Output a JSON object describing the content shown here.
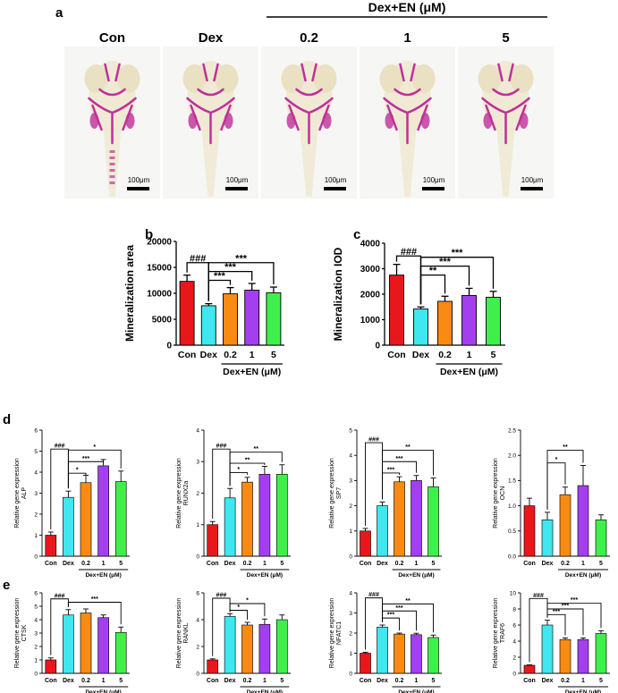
{
  "panel_labels": {
    "a": "a",
    "b": "b",
    "c": "c",
    "d": "d",
    "e": "e"
  },
  "panel_a": {
    "group_header": "Dex+EN (μM)",
    "groups": [
      "Con",
      "Dex",
      "0.2",
      "1",
      "5"
    ],
    "scale_bar_label": "100μm",
    "stain_color": "#c0309a",
    "description_colors": {
      "tissue": "#efe8cf"
    }
  },
  "group_label": "Dex+EN (μM)",
  "colors": [
    "#e8171b",
    "#40e6f0",
    "#f98a12",
    "#a43ff0",
    "#3ff04a"
  ],
  "chart_data": [
    {
      "id": "b",
      "type": "bar",
      "ylabel": "Mineralization area",
      "categories": [
        "Con",
        "Dex",
        "0.2",
        "1",
        "5"
      ],
      "values": [
        12300,
        7600,
        9900,
        10600,
        10100
      ],
      "errors": [
        1200,
        400,
        1200,
        1300,
        1100
      ],
      "ylim": [
        0,
        20000
      ],
      "ticks": [
        0,
        5000,
        10000,
        15000,
        20000
      ],
      "brackets": [
        {
          "from": 0,
          "to": 1,
          "y": 15900,
          "label": "###"
        },
        {
          "from": 1,
          "to": 2,
          "y": 12500,
          "label": "***"
        },
        {
          "from": 1,
          "to": 3,
          "y": 14200,
          "label": "***"
        },
        {
          "from": 1,
          "to": 4,
          "y": 15900,
          "label": "***"
        }
      ]
    },
    {
      "id": "c",
      "type": "bar",
      "ylabel": "Mineralization IOD",
      "categories": [
        "Con",
        "Dex",
        "0.2",
        "1",
        "5"
      ],
      "values": [
        2750,
        1420,
        1720,
        1950,
        1880
      ],
      "errors": [
        420,
        80,
        200,
        280,
        230
      ],
      "ylim": [
        0,
        4000
      ],
      "ticks": [
        0,
        1000,
        2000,
        3000,
        4000
      ],
      "brackets": [
        {
          "from": 0,
          "to": 1,
          "y": 3500,
          "label": "###"
        },
        {
          "from": 1,
          "to": 2,
          "y": 2750,
          "label": "**"
        },
        {
          "from": 1,
          "to": 3,
          "y": 3100,
          "label": "***"
        },
        {
          "from": 1,
          "to": 4,
          "y": 3450,
          "label": "***"
        }
      ]
    },
    {
      "id": "d1",
      "type": "bar",
      "ylabel": "Relative gene expression",
      "ylabel2": "ALP",
      "categories": [
        "Con",
        "Dex",
        "0.2",
        "1",
        "5"
      ],
      "values": [
        1.0,
        2.8,
        3.5,
        4.3,
        3.55
      ],
      "errors": [
        0.15,
        0.3,
        0.35,
        0.3,
        0.5
      ],
      "ylim": [
        0,
        6
      ],
      "ticks": [
        0,
        1,
        2,
        3,
        4,
        5,
        6
      ],
      "brackets": [
        {
          "from": 0,
          "to": 1,
          "y": 5.1,
          "label": "###"
        },
        {
          "from": 1,
          "to": 2,
          "y": 3.95,
          "label": "*"
        },
        {
          "from": 1,
          "to": 3,
          "y": 4.5,
          "label": "***"
        },
        {
          "from": 1,
          "to": 4,
          "y": 5.05,
          "label": "*"
        }
      ]
    },
    {
      "id": "d2",
      "type": "bar",
      "ylabel": "Relative gene expression",
      "ylabel2": "RUNX2a",
      "categories": [
        "Con",
        "Dex",
        "0.2",
        "1",
        "5"
      ],
      "values": [
        1.0,
        1.85,
        2.35,
        2.6,
        2.6
      ],
      "errors": [
        0.1,
        0.3,
        0.15,
        0.25,
        0.3
      ],
      "ylim": [
        0,
        4
      ],
      "ticks": [
        0,
        1,
        2,
        3,
        4
      ],
      "brackets": [
        {
          "from": 0,
          "to": 1,
          "y": 3.4,
          "label": "###"
        },
        {
          "from": 1,
          "to": 2,
          "y": 2.65,
          "label": "*"
        },
        {
          "from": 1,
          "to": 3,
          "y": 2.95,
          "label": "**"
        },
        {
          "from": 1,
          "to": 4,
          "y": 3.3,
          "label": "**"
        }
      ]
    },
    {
      "id": "d3",
      "type": "bar",
      "ylabel": "Relative gene expression",
      "ylabel2": "SP7",
      "categories": [
        "Con",
        "Dex",
        "0.2",
        "1",
        "5"
      ],
      "values": [
        1.0,
        2.0,
        2.95,
        3.0,
        2.75
      ],
      "errors": [
        0.1,
        0.15,
        0.2,
        0.2,
        0.35
      ],
      "ylim": [
        0,
        5
      ],
      "ticks": [
        0,
        1,
        2,
        3,
        4,
        5
      ],
      "brackets": [
        {
          "from": 0,
          "to": 1,
          "y": 4.5,
          "label": "###"
        },
        {
          "from": 1,
          "to": 2,
          "y": 3.3,
          "label": "***"
        },
        {
          "from": 1,
          "to": 3,
          "y": 3.75,
          "label": "***"
        },
        {
          "from": 1,
          "to": 4,
          "y": 4.2,
          "label": "**"
        }
      ]
    },
    {
      "id": "d4",
      "type": "bar",
      "ylabel": "Relative gene expression",
      "ylabel2": "OCN",
      "categories": [
        "Con",
        "Dex",
        "0.2",
        "1",
        "5"
      ],
      "values": [
        1.0,
        0.72,
        1.22,
        1.4,
        0.72
      ],
      "errors": [
        0.15,
        0.15,
        0.15,
        0.4,
        0.1
      ],
      "ylim": [
        0,
        2.5
      ],
      "ticks": [
        0,
        0.5,
        1.0,
        1.5,
        2.0,
        2.5
      ],
      "brackets": [
        {
          "from": 1,
          "to": 2,
          "y": 1.85,
          "label": "*"
        },
        {
          "from": 1,
          "to": 3,
          "y": 2.1,
          "label": "**"
        }
      ]
    },
    {
      "id": "e1",
      "type": "bar",
      "ylabel": "Relative gene expression",
      "ylabel2": "CTSK",
      "categories": [
        "Con",
        "Dex",
        "0.2",
        "1",
        "5"
      ],
      "values": [
        1.0,
        4.35,
        4.5,
        4.15,
        3.05
      ],
      "errors": [
        0.15,
        0.4,
        0.3,
        0.2,
        0.4
      ],
      "ylim": [
        0,
        6
      ],
      "ticks": [
        0,
        1,
        2,
        3,
        4,
        5,
        6
      ],
      "brackets": [
        {
          "from": 0,
          "to": 1,
          "y": 5.55,
          "label": "###"
        },
        {
          "from": 1,
          "to": 4,
          "y": 5.3,
          "label": "***"
        }
      ]
    },
    {
      "id": "e2",
      "type": "bar",
      "ylabel": "Relative gene expression",
      "ylabel2": "RANKL",
      "categories": [
        "Con",
        "Dex",
        "0.2",
        "1",
        "5"
      ],
      "values": [
        1.0,
        4.25,
        3.6,
        3.65,
        4.0
      ],
      "errors": [
        0.08,
        0.2,
        0.2,
        0.4,
        0.35
      ],
      "ylim": [
        0,
        6
      ],
      "ticks": [
        0,
        2,
        4,
        6
      ],
      "brackets": [
        {
          "from": 0,
          "to": 1,
          "y": 5.6,
          "label": "###"
        },
        {
          "from": 1,
          "to": 2,
          "y": 4.7,
          "label": "*"
        },
        {
          "from": 1,
          "to": 3,
          "y": 5.2,
          "label": "*"
        }
      ]
    },
    {
      "id": "e3",
      "type": "bar",
      "ylabel": "Relative gene expression",
      "ylabel2": "NFATC1",
      "categories": [
        "Con",
        "Dex",
        "0.2",
        "1",
        "5"
      ],
      "values": [
        1.0,
        2.3,
        1.95,
        1.92,
        1.78
      ],
      "errors": [
        0.05,
        0.1,
        0.05,
        0.07,
        0.12
      ],
      "ylim": [
        0,
        4
      ],
      "ticks": [
        0,
        1,
        2,
        3,
        4
      ],
      "brackets": [
        {
          "from": 0,
          "to": 1,
          "y": 3.75,
          "label": "###"
        },
        {
          "from": 1,
          "to": 2,
          "y": 2.75,
          "label": "***"
        },
        {
          "from": 1,
          "to": 3,
          "y": 3.1,
          "label": "***"
        },
        {
          "from": 1,
          "to": 4,
          "y": 3.45,
          "label": "**"
        }
      ]
    },
    {
      "id": "e4",
      "type": "bar",
      "ylabel": "Relative gene expression",
      "ylabel2": "TRAF6",
      "categories": [
        "Con",
        "Dex",
        "0.2",
        "1",
        "5"
      ],
      "values": [
        1.0,
        6.0,
        4.2,
        4.2,
        4.95
      ],
      "errors": [
        0.05,
        0.6,
        0.2,
        0.2,
        0.35
      ],
      "ylim": [
        0,
        10
      ],
      "ticks": [
        0,
        2,
        4,
        6,
        8,
        10
      ],
      "brackets": [
        {
          "from": 0,
          "to": 1,
          "y": 9.3,
          "label": "###"
        },
        {
          "from": 1,
          "to": 2,
          "y": 7.3,
          "label": "***"
        },
        {
          "from": 1,
          "to": 3,
          "y": 8.0,
          "label": "***"
        },
        {
          "from": 1,
          "to": 4,
          "y": 8.7,
          "label": "***"
        }
      ]
    }
  ]
}
